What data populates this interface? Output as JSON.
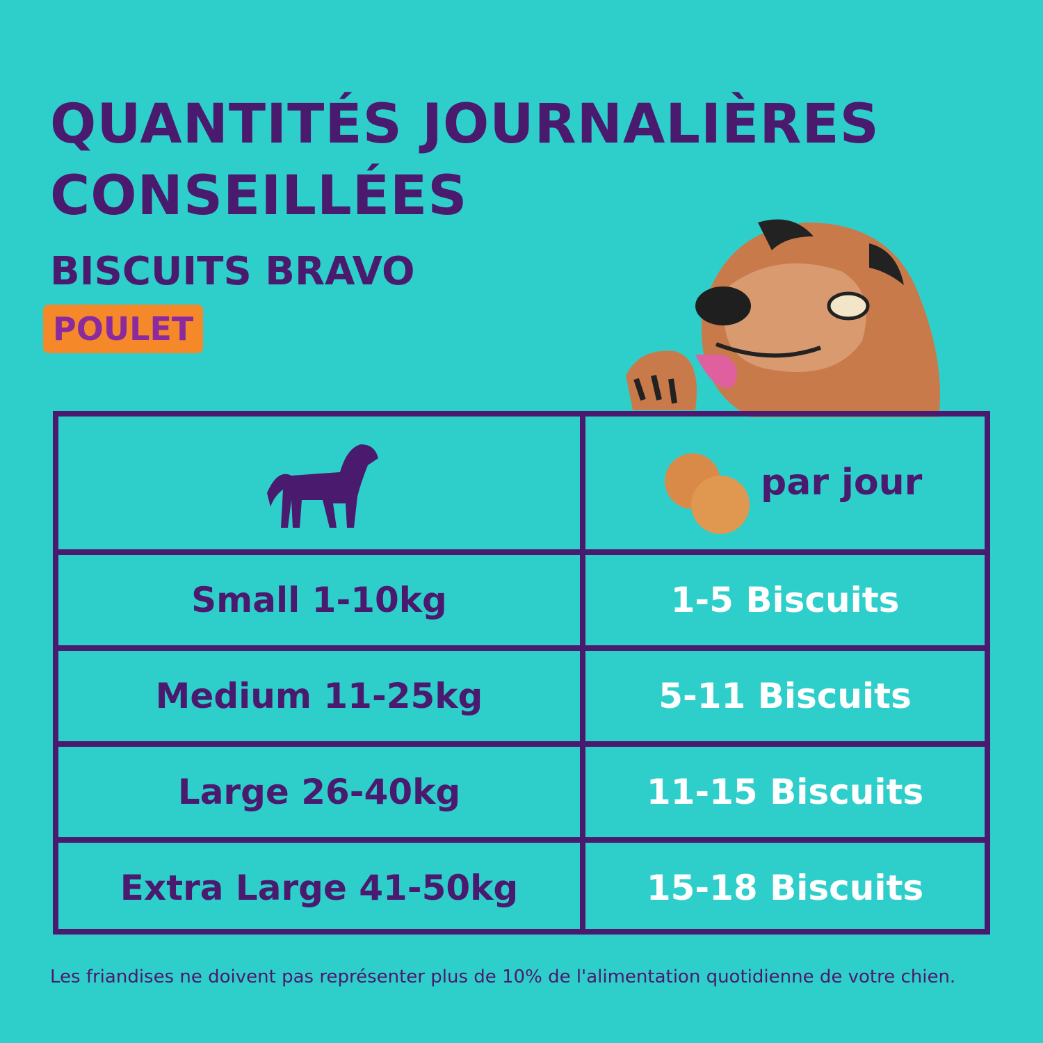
{
  "header": {
    "title": [
      "QUANTITÉS JOURNALIÈRES",
      "CONSEILLÉES"
    ],
    "subtitle": "BISCUITS BRAVO",
    "badge": "POULET"
  },
  "table": {
    "header": {
      "amount": "par jour"
    },
    "rows": [
      [
        "Small 1-10kg",
        "1-5 Biscuits"
      ],
      [
        "Medium 11-25kg",
        "5-11 Biscuits"
      ],
      [
        "Large 26-40kg",
        "11-15 Biscuits"
      ],
      [
        "Extra Large 41-50kg",
        "15-18 Biscuits"
      ]
    ]
  },
  "footnote": "Les friandises ne doivent pas représenter plus de 10% de l'alimentation quotidienne de votre chien."
}
